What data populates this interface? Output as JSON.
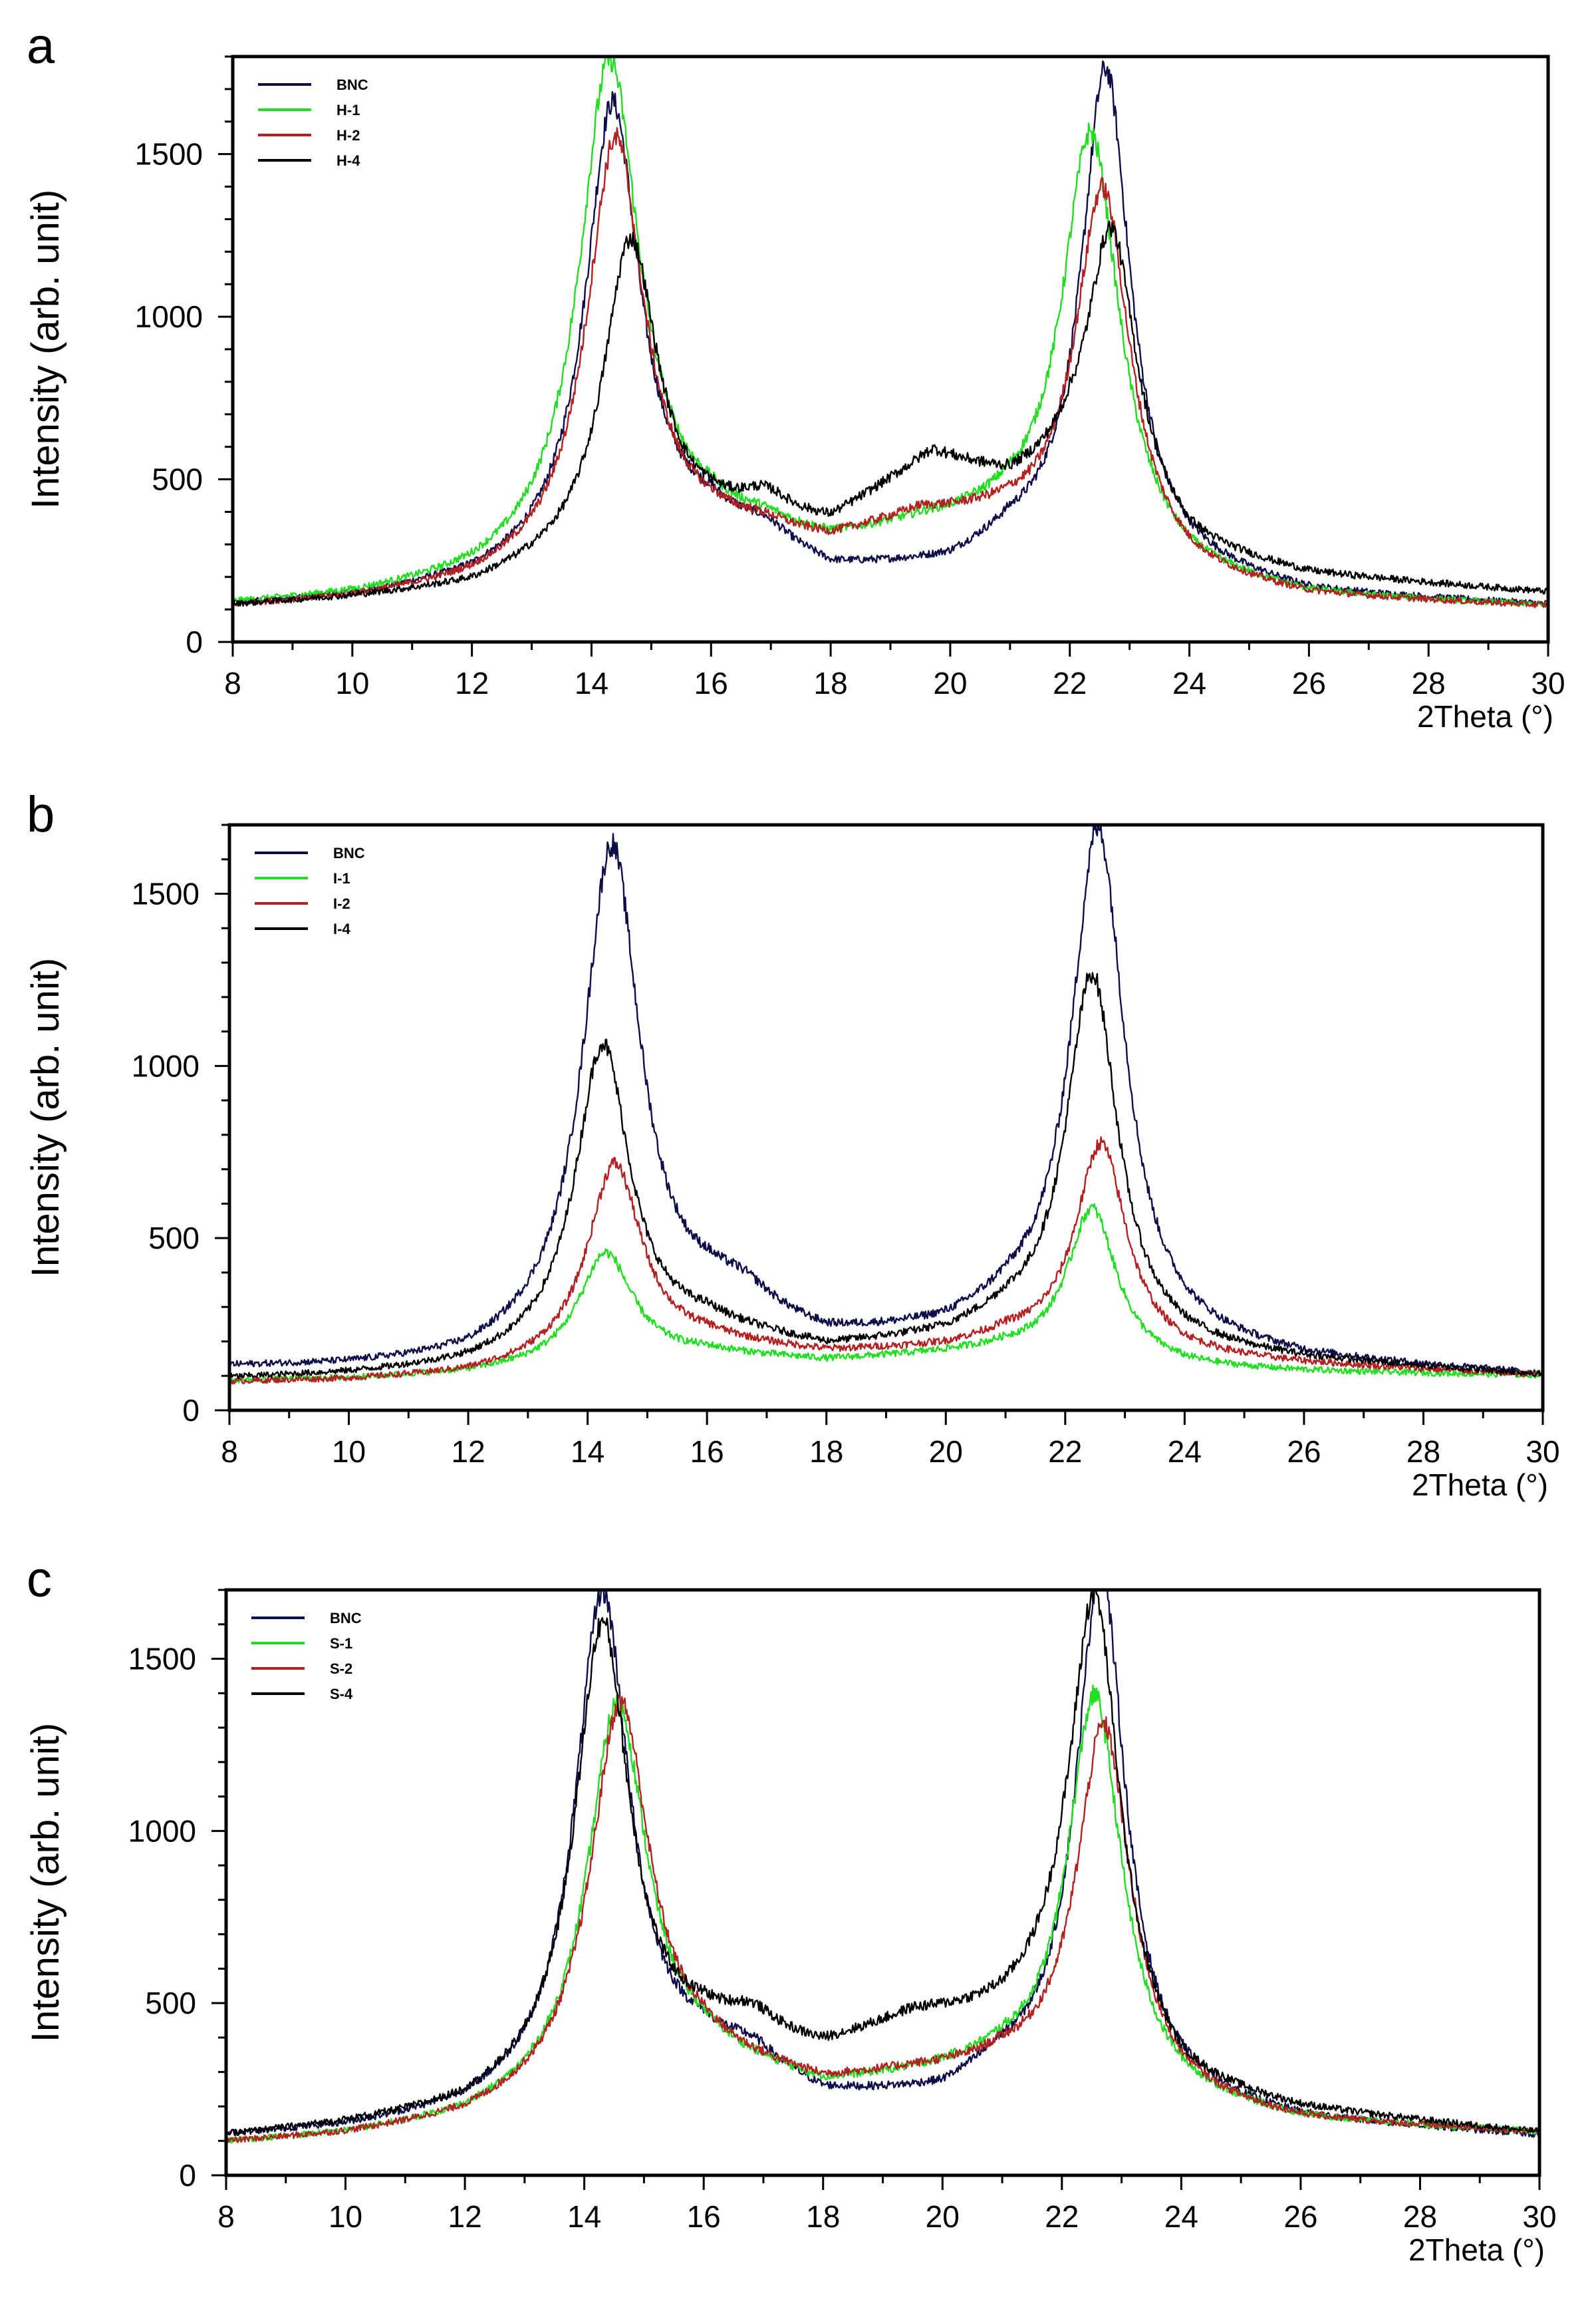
{
  "chart_data": [
    {
      "panel": "a",
      "type": "line",
      "xlabel": "2Theta (°)",
      "ylabel": "Intensity (arb. unit)",
      "xlim": [
        8,
        30
      ],
      "ylim": [
        0,
        1800
      ],
      "xticks": [
        8,
        10,
        12,
        14,
        16,
        18,
        20,
        22,
        24,
        26,
        28,
        30
      ],
      "yticks": [
        0,
        500,
        1000,
        1500
      ],
      "legend": "top-left",
      "series": [
        {
          "name": "BNC",
          "color": "#0d0d4a",
          "baseline": [
            [
              8,
              110
            ],
            [
              10,
              130
            ],
            [
              12,
              170
            ],
            [
              16,
              330
            ],
            [
              17,
              270
            ],
            [
              18,
              200
            ],
            [
              20,
              215
            ],
            [
              21,
              280
            ],
            [
              24,
              200
            ],
            [
              26,
              140
            ],
            [
              30,
              110
            ]
          ],
          "peaks": [
            [
              14.35,
              1390,
              0.55
            ],
            [
              22.6,
              1520,
              0.5
            ],
            [
              16.9,
              40,
              0.5
            ]
          ]
        },
        {
          "name": "H-1",
          "color": "#22dd22",
          "baseline": [
            [
              8,
              110
            ],
            [
              10,
              130
            ],
            [
              12,
              170
            ],
            [
              16,
              320
            ],
            [
              18,
              280
            ],
            [
              19.5,
              330
            ],
            [
              20.5,
              340
            ],
            [
              21,
              340
            ],
            [
              24,
              180
            ],
            [
              26,
              130
            ],
            [
              30,
              105
            ]
          ],
          "peaks": [
            [
              14.3,
              1530,
              0.62
            ],
            [
              22.35,
              1290,
              0.58
            ],
            [
              16.9,
              20,
              0.5
            ]
          ]
        },
        {
          "name": "H-2",
          "color": "#b22222",
          "baseline": [
            [
              8,
              105
            ],
            [
              10,
              125
            ],
            [
              12,
              165
            ],
            [
              16,
              315
            ],
            [
              18,
              290
            ],
            [
              19.5,
              370
            ],
            [
              20.5,
              360
            ],
            [
              21,
              350
            ],
            [
              24,
              180
            ],
            [
              26,
              130
            ],
            [
              30,
              105
            ]
          ],
          "peaks": [
            [
              14.4,
              1290,
              0.58
            ],
            [
              22.55,
              1130,
              0.55
            ],
            [
              16.9,
              20,
              0.5
            ]
          ]
        },
        {
          "name": "H-4",
          "color": "#000000",
          "baseline": [
            [
              8,
              110
            ],
            [
              10,
              130
            ],
            [
              12,
              160
            ],
            [
              16,
              350
            ],
            [
              18,
              350
            ],
            [
              19.7,
              560
            ],
            [
              21,
              470
            ],
            [
              22,
              500
            ],
            [
              24,
              270
            ],
            [
              26,
              200
            ],
            [
              30,
              150
            ]
          ],
          "peaks": [
            [
              14.65,
              950,
              0.55
            ],
            [
              22.7,
              850,
              0.5
            ],
            [
              16.9,
              70,
              0.5
            ]
          ]
        }
      ]
    },
    {
      "panel": "b",
      "type": "line",
      "xlabel": "2Theta (°)",
      "ylabel": "Intensity (arb. unit)",
      "xlim": [
        8,
        30
      ],
      "ylim": [
        0,
        1700
      ],
      "xticks": [
        8,
        10,
        12,
        14,
        16,
        18,
        20,
        22,
        24,
        26,
        28,
        30
      ],
      "yticks": [
        0,
        500,
        1000,
        1500
      ],
      "legend": "top-left",
      "series": [
        {
          "name": "BNC",
          "color": "#0d0d4a",
          "baseline": [
            [
              8,
              120
            ],
            [
              10,
              120
            ],
            [
              12,
              130
            ],
            [
              16,
              270
            ],
            [
              18,
              190
            ],
            [
              20,
              210
            ],
            [
              21,
              250
            ],
            [
              24,
              180
            ],
            [
              26,
              140
            ],
            [
              30,
              100
            ]
          ],
          "peaks": [
            [
              14.4,
              1420,
              0.58
            ],
            [
              22.55,
              1470,
              0.55
            ],
            [
              16.6,
              60,
              0.6
            ]
          ]
        },
        {
          "name": "I-1",
          "color": "#22dd22",
          "baseline": [
            [
              8,
              85
            ],
            [
              10,
              90
            ],
            [
              12,
              105
            ],
            [
              16,
              160
            ],
            [
              18,
              140
            ],
            [
              20,
              160
            ],
            [
              21,
              170
            ],
            [
              24,
              120
            ],
            [
              26,
              110
            ],
            [
              30,
              100
            ]
          ],
          "peaks": [
            [
              14.3,
              320,
              0.55
            ],
            [
              22.45,
              440,
              0.5
            ]
          ]
        },
        {
          "name": "I-2",
          "color": "#b22222",
          "baseline": [
            [
              8,
              80
            ],
            [
              10,
              85
            ],
            [
              12,
              100
            ],
            [
              16,
              190
            ],
            [
              18,
              160
            ],
            [
              20,
              175
            ],
            [
              21,
              200
            ],
            [
              24,
              150
            ],
            [
              26,
              130
            ],
            [
              30,
              100
            ]
          ],
          "peaks": [
            [
              14.45,
              560,
              0.55
            ],
            [
              22.6,
              600,
              0.52
            ]
          ]
        },
        {
          "name": "I-4",
          "color": "#000000",
          "baseline": [
            [
              8,
              90
            ],
            [
              10,
              100
            ],
            [
              12,
              120
            ],
            [
              16,
              230
            ],
            [
              18,
              170
            ],
            [
              20,
              200
            ],
            [
              21,
              240
            ],
            [
              24,
              170
            ],
            [
              26,
              140
            ],
            [
              30,
              100
            ]
          ],
          "peaks": [
            [
              14.25,
              880,
              0.55
            ],
            [
              22.45,
              1060,
              0.52
            ]
          ]
        }
      ]
    },
    {
      "panel": "c",
      "type": "line",
      "xlabel": "2Theta (°)",
      "ylabel": "Intensity (arb. unit)",
      "xlim": [
        8,
        30
      ],
      "ylim": [
        0,
        1700
      ],
      "xticks": [
        8,
        10,
        12,
        14,
        16,
        18,
        20,
        22,
        24,
        26,
        28,
        30
      ],
      "yticks": [
        0,
        500,
        1000,
        1500
      ],
      "legend": "top-left",
      "series": [
        {
          "name": "BNC",
          "color": "#0d0d4a",
          "baseline": [
            [
              8,
              110
            ],
            [
              10,
              130
            ],
            [
              12,
              170
            ],
            [
              16,
              330
            ],
            [
              17,
              280
            ],
            [
              18,
              210
            ],
            [
              20,
              215
            ],
            [
              21,
              280
            ],
            [
              24,
              200
            ],
            [
              26,
              150
            ],
            [
              30,
              110
            ]
          ],
          "peaks": [
            [
              14.3,
              1430,
              0.55
            ],
            [
              22.65,
              1520,
              0.5
            ],
            [
              16.8,
              40,
              0.5
            ]
          ]
        },
        {
          "name": "S-1",
          "color": "#22dd22",
          "baseline": [
            [
              8,
              90
            ],
            [
              10,
              110
            ],
            [
              12,
              150
            ],
            [
              16,
              320
            ],
            [
              18,
              240
            ],
            [
              19.5,
              270
            ],
            [
              20.5,
              290
            ],
            [
              21,
              300
            ],
            [
              24,
              200
            ],
            [
              26,
              150
            ],
            [
              30,
              120
            ]
          ],
          "peaks": [
            [
              14.55,
              1110,
              0.6
            ],
            [
              22.55,
              1140,
              0.55
            ]
          ]
        },
        {
          "name": "S-2",
          "color": "#b22222",
          "baseline": [
            [
              8,
              90
            ],
            [
              10,
              110
            ],
            [
              12,
              150
            ],
            [
              16,
              320
            ],
            [
              18,
              250
            ],
            [
              19.5,
              280
            ],
            [
              20.5,
              290
            ],
            [
              21,
              300
            ],
            [
              24,
              200
            ],
            [
              26,
              150
            ],
            [
              30,
              120
            ]
          ],
          "peaks": [
            [
              14.6,
              1110,
              0.6
            ],
            [
              22.7,
              1060,
              0.55
            ]
          ]
        },
        {
          "name": "S-4",
          "color": "#000000",
          "baseline": [
            [
              8,
              110
            ],
            [
              10,
              140
            ],
            [
              12,
              180
            ],
            [
              16,
              390
            ],
            [
              18,
              350
            ],
            [
              19.5,
              440
            ],
            [
              21,
              440
            ],
            [
              22,
              470
            ],
            [
              24,
              240
            ],
            [
              26,
              180
            ],
            [
              30,
              120
            ]
          ],
          "peaks": [
            [
              14.3,
              1300,
              0.55
            ],
            [
              22.55,
              1280,
              0.5
            ],
            [
              16.8,
              60,
              0.5
            ]
          ]
        }
      ]
    }
  ]
}
